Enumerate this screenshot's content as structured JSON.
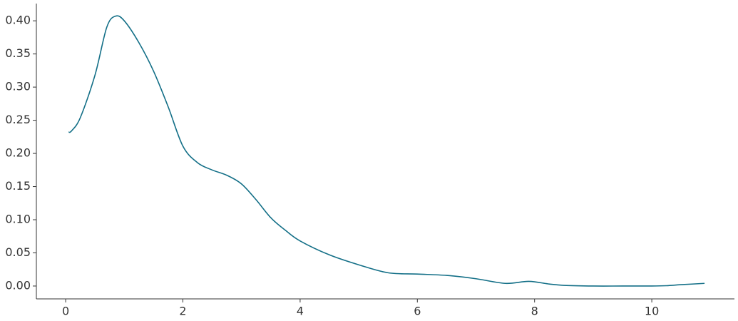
{
  "chart_data": {
    "type": "line",
    "x": [
      0.05,
      0.1,
      0.25,
      0.5,
      0.7,
      0.85,
      1.0,
      1.25,
      1.5,
      1.75,
      2.0,
      2.25,
      2.5,
      2.75,
      3.0,
      3.25,
      3.5,
      3.75,
      4.0,
      4.5,
      5.0,
      5.5,
      6.0,
      6.5,
      7.0,
      7.5,
      7.9,
      8.25,
      8.5,
      9.0,
      9.5,
      10.0,
      10.25,
      10.5,
      10.9
    ],
    "series": [
      {
        "color": "#136f87",
        "values": [
          0.232,
          0.234,
          0.254,
          0.318,
          0.39,
          0.407,
          0.4,
          0.367,
          0.324,
          0.27,
          0.211,
          0.186,
          0.175,
          0.167,
          0.154,
          0.13,
          0.103,
          0.084,
          0.068,
          0.047,
          0.032,
          0.02,
          0.018,
          0.016,
          0.011,
          0.004,
          0.007,
          0.003,
          0.001,
          0.0,
          0.0,
          0.0,
          0.0005,
          0.002,
          0.004
        ]
      }
    ],
    "xlim": [
      -0.5,
      11.41
    ],
    "ylim": [
      -0.0194,
      0.426
    ],
    "xticks": [
      0,
      2,
      4,
      6,
      8,
      10
    ],
    "yticks": [
      {
        "value": 0,
        "label": "0.00"
      },
      0.05,
      {
        "value": 0.1,
        "label": "0.10"
      },
      0.15,
      {
        "value": 0.2,
        "label": "0.20"
      },
      0.25,
      {
        "value": 0.3,
        "label": "0.30"
      },
      0.35,
      {
        "value": 0.4,
        "label": "0.40"
      }
    ],
    "grid": false
  }
}
